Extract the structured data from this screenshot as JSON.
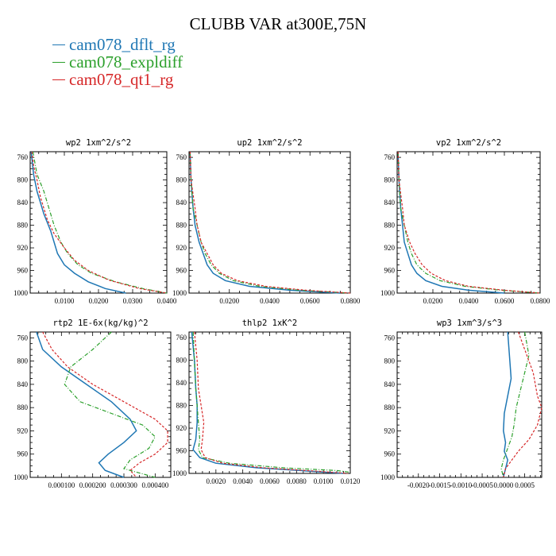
{
  "title": "CLUBB VAR at300E,75N",
  "legend": [
    {
      "label": "cam078_dflt_rg",
      "color": "#1f77b4"
    },
    {
      "label": "cam078_expldiff",
      "color": "#2ca02c"
    },
    {
      "label": "cam078_qt1_rg",
      "color": "#d62728"
    }
  ],
  "chart_data": [
    {
      "type": "line",
      "title": "wp2  1xm^2/s^2",
      "xlim": [
        0,
        0.04
      ],
      "ylim": [
        1000,
        750
      ],
      "xticks": [
        0.01,
        0.02,
        0.03,
        0.04
      ],
      "xtick_labels": [
        "0.0100",
        "0.0200",
        "0.0300",
        "0.0400"
      ],
      "yticks": [
        760,
        800,
        840,
        880,
        920,
        960,
        1000
      ],
      "ytick_labels": [
        "760",
        "800",
        "840",
        "880",
        "920",
        "960",
        "1000"
      ],
      "series": [
        {
          "name": "cam078_dflt_rg",
          "x": [
            0.0003,
            0.001,
            0.002,
            0.004,
            0.006,
            0.007,
            0.008,
            0.01,
            0.013,
            0.017,
            0.022,
            0.028
          ],
          "y": [
            750,
            790,
            820,
            860,
            890,
            910,
            930,
            950,
            965,
            980,
            992,
            1000
          ]
        },
        {
          "name": "cam078_expldiff",
          "x": [
            0.0008,
            0.002,
            0.004,
            0.005,
            0.007,
            0.009,
            0.011,
            0.014,
            0.018,
            0.025,
            0.033,
            0.04
          ],
          "y": [
            750,
            790,
            820,
            840,
            880,
            910,
            930,
            950,
            965,
            980,
            992,
            1000
          ]
        },
        {
          "name": "cam078_qt1_rg",
          "x": [
            0.0005,
            0.001,
            0.002,
            0.003,
            0.005,
            0.007,
            0.01,
            0.013,
            0.017,
            0.023,
            0.032,
            0.04
          ],
          "y": [
            750,
            775,
            800,
            830,
            870,
            895,
            920,
            942,
            960,
            977,
            992,
            1000
          ]
        }
      ]
    },
    {
      "type": "line",
      "title": "up2  1xm^2/s^2",
      "xlim": [
        0,
        0.08
      ],
      "ylim": [
        1000,
        750
      ],
      "xticks": [
        0.02,
        0.04,
        0.06,
        0.08
      ],
      "xtick_labels": [
        "0.0200",
        "0.0400",
        "0.0600",
        "0.0800"
      ],
      "yticks": [
        760,
        800,
        840,
        880,
        920,
        960,
        1000
      ],
      "ytick_labels": [
        "760",
        "800",
        "840",
        "880",
        "920",
        "960",
        "1000"
      ],
      "series": [
        {
          "name": "cam078_dflt_rg",
          "x": [
            0.0005,
            0.001,
            0.002,
            0.003,
            0.005,
            0.007,
            0.009,
            0.012,
            0.018,
            0.03,
            0.05,
            0.075
          ],
          "y": [
            750,
            800,
            850,
            880,
            910,
            930,
            950,
            965,
            978,
            988,
            995,
            1000
          ]
        },
        {
          "name": "cam078_expldiff",
          "x": [
            0.0005,
            0.001,
            0.002,
            0.004,
            0.006,
            0.008,
            0.011,
            0.015,
            0.022,
            0.035,
            0.055,
            0.08
          ],
          "y": [
            750,
            800,
            850,
            880,
            910,
            930,
            950,
            965,
            978,
            988,
            995,
            1000
          ]
        },
        {
          "name": "cam078_qt1_rg",
          "x": [
            0.0005,
            0.001,
            0.003,
            0.004,
            0.006,
            0.009,
            0.012,
            0.016,
            0.024,
            0.038,
            0.058,
            0.08
          ],
          "y": [
            750,
            800,
            850,
            880,
            910,
            930,
            950,
            965,
            978,
            988,
            995,
            1000
          ]
        }
      ]
    },
    {
      "type": "line",
      "title": "vp2  1xm^2/s^2",
      "xlim": [
        0,
        0.08
      ],
      "ylim": [
        1000,
        750
      ],
      "xticks": [
        0.02,
        0.04,
        0.06,
        0.08
      ],
      "xtick_labels": [
        "0.0200",
        "0.0400",
        "0.0600",
        "0.0800"
      ],
      "yticks": [
        760,
        800,
        840,
        880,
        920,
        960,
        1000
      ],
      "ytick_labels": [
        "760",
        "800",
        "840",
        "880",
        "920",
        "960",
        "1000"
      ],
      "series": [
        {
          "name": "cam078_dflt_rg",
          "x": [
            0.0005,
            0.001,
            0.002,
            0.003,
            0.004,
            0.006,
            0.008,
            0.011,
            0.016,
            0.025,
            0.04,
            0.06
          ],
          "y": [
            750,
            800,
            850,
            880,
            910,
            930,
            950,
            965,
            978,
            988,
            995,
            1000
          ]
        },
        {
          "name": "cam078_expldiff",
          "x": [
            0.0005,
            0.001,
            0.002,
            0.004,
            0.006,
            0.008,
            0.011,
            0.016,
            0.024,
            0.038,
            0.058,
            0.08
          ],
          "y": [
            750,
            800,
            850,
            880,
            910,
            930,
            950,
            965,
            978,
            988,
            995,
            1000
          ]
        },
        {
          "name": "cam078_qt1_rg",
          "x": [
            0.0005,
            0.001,
            0.003,
            0.004,
            0.007,
            0.01,
            0.014,
            0.019,
            0.027,
            0.04,
            0.06,
            0.08
          ],
          "y": [
            750,
            800,
            850,
            880,
            910,
            930,
            950,
            965,
            978,
            988,
            995,
            1000
          ]
        }
      ]
    },
    {
      "type": "line",
      "title": "rtp2  1E-6x(kg/kg)^2",
      "xlim": [
        0,
        0.00045
      ],
      "ylim": [
        1000,
        750
      ],
      "xticks": [
        0.0001,
        0.0002,
        0.0003,
        0.0004
      ],
      "xtick_labels": [
        "0.000100",
        "0.000200",
        "0.000300",
        "0.000400"
      ],
      "yticks": [
        760,
        800,
        840,
        880,
        920,
        960,
        1000
      ],
      "ytick_labels": [
        "760",
        "800",
        "840",
        "880",
        "920",
        "960",
        "1000"
      ],
      "series": [
        {
          "name": "cam078_dflt_rg",
          "x": [
            2e-05,
            4e-05,
            0.0001,
            0.00018,
            0.00026,
            0.00032,
            0.00034,
            0.0003,
            0.00025,
            0.00022,
            0.00024,
            0.0003
          ],
          "y": [
            750,
            780,
            810,
            840,
            870,
            900,
            920,
            940,
            960,
            975,
            988,
            1000
          ]
        },
        {
          "name": "cam078_expldiff",
          "x": [
            0.00026,
            0.0002,
            0.00013,
            0.00011,
            0.00016,
            0.00026,
            0.00036,
            0.0004,
            0.00038,
            0.00032,
            0.0003,
            0.0004
          ],
          "y": [
            750,
            780,
            810,
            840,
            870,
            890,
            910,
            930,
            950,
            970,
            985,
            1000
          ]
        },
        {
          "name": "cam078_qt1_rg",
          "x": [
            4e-05,
            7e-05,
            0.00012,
            0.0002,
            0.0003,
            0.0004,
            0.00044,
            0.00044,
            0.0004,
            0.00035,
            0.00032,
            0.00034
          ],
          "y": [
            750,
            780,
            810,
            840,
            870,
            900,
            920,
            940,
            960,
            975,
            988,
            1000
          ]
        }
      ]
    },
    {
      "type": "line",
      "title": "thlp2  1xK^2",
      "xlim": [
        0,
        0.012
      ],
      "ylim": [
        1000,
        750
      ],
      "xticks": [
        0.002,
        0.004,
        0.006,
        0.008,
        0.01,
        0.012
      ],
      "xtick_labels": [
        "0.0020",
        "0.0040",
        "0.0060",
        "0.0080",
        "0.0100",
        "0.0120"
      ],
      "yticks": [
        760,
        800,
        840,
        880,
        920,
        960,
        1000
      ],
      "ytick_labels": [
        "760",
        "800",
        "840",
        "880",
        "920",
        "960",
        "1000"
      ],
      "series": [
        {
          "name": "cam078_dflt_rg",
          "x": [
            0.0002,
            0.0004,
            0.0005,
            0.0006,
            0.0006,
            0.0005,
            0.0003,
            0.0008,
            0.002,
            0.005,
            0.009,
            0.0115
          ],
          "y": [
            750,
            800,
            850,
            880,
            910,
            940,
            958,
            972,
            982,
            990,
            996,
            1000
          ]
        },
        {
          "name": "cam078_expldiff",
          "x": [
            0.0003,
            0.0004,
            0.0005,
            0.0006,
            0.0007,
            0.0008,
            0.0007,
            0.001,
            0.003,
            0.007,
            0.011,
            0.012
          ],
          "y": [
            750,
            800,
            850,
            880,
            910,
            940,
            958,
            972,
            982,
            990,
            995,
            998
          ]
        },
        {
          "name": "cam078_qt1_rg",
          "x": [
            0.0004,
            0.0006,
            0.0007,
            0.0009,
            0.0011,
            0.001,
            0.0009,
            0.0012,
            0.0025,
            0.0055,
            0.0095,
            0.0118
          ],
          "y": [
            750,
            800,
            850,
            880,
            910,
            940,
            958,
            972,
            982,
            990,
            996,
            1000
          ]
        }
      ]
    },
    {
      "type": "line",
      "title": "wp3  1xm^3/s^3",
      "xlim": [
        -0.0025,
        0.0009
      ],
      "ylim": [
        1000,
        750
      ],
      "xticks": [
        -0.002,
        -0.0015,
        -0.001,
        -0.0005,
        0.0,
        0.0005
      ],
      "xtick_labels": [
        "-0.0020",
        "-0.0015",
        "-0.0010",
        "-0.0005",
        "0.0000",
        "0.0005"
      ],
      "yticks": [
        760,
        800,
        840,
        880,
        920,
        960,
        1000
      ],
      "ytick_labels": [
        "760",
        "800",
        "840",
        "880",
        "920",
        "960",
        "1000"
      ],
      "series": [
        {
          "name": "cam078_dflt_rg",
          "x": [
            0.0001,
            0.00015,
            0.00018,
            0.0001,
            2e-05,
            0.0,
            5e-05,
            2e-05,
            0.0001,
            5e-05,
            0.0
          ],
          "y": [
            750,
            800,
            830,
            860,
            890,
            920,
            940,
            955,
            970,
            985,
            1000
          ]
        },
        {
          "name": "cam078_expldiff",
          "x": [
            0.0005,
            0.0006,
            0.0005,
            0.0004,
            0.0003,
            0.00025,
            0.0002,
            0.0001,
            0.0,
            -5e-05,
            0.0
          ],
          "y": [
            750,
            790,
            820,
            850,
            880,
            910,
            930,
            950,
            970,
            985,
            1000
          ]
        },
        {
          "name": "cam078_qt1_rg",
          "x": [
            0.00035,
            0.0005,
            0.0007,
            0.0008,
            0.0009,
            0.0008,
            0.0006,
            0.00035,
            0.0002,
            5e-05,
            0.0
          ],
          "y": [
            750,
            780,
            820,
            860,
            880,
            910,
            935,
            955,
            970,
            985,
            1000
          ]
        }
      ]
    }
  ]
}
